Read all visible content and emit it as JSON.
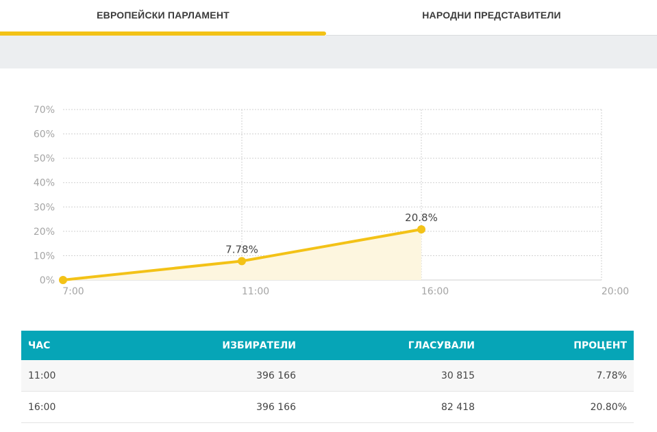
{
  "tabs": [
    {
      "label": "ЕВРОПЕЙСКИ ПАРЛАМЕНТ",
      "active": true
    },
    {
      "label": "НАРОДНИ ПРЕДСТАВИТЕЛИ",
      "active": false
    }
  ],
  "colors": {
    "accent": "#f3c217",
    "table_header": "#06a5b7",
    "area_fill": "#fdf6df"
  },
  "chart_data": {
    "type": "line",
    "title": "",
    "xlabel": "",
    "ylabel": "",
    "x_ticks": [
      "7:00",
      "11:00",
      "16:00",
      "20:00"
    ],
    "y_ticks": [
      "0%",
      "10%",
      "20%",
      "30%",
      "40%",
      "50%",
      "60%",
      "70%"
    ],
    "ylim": [
      0,
      70
    ],
    "grid": true,
    "legend": "none",
    "series": [
      {
        "x": [
          "7:00",
          "11:00",
          "16:00"
        ],
        "values": [
          0,
          7.78,
          20.8
        ],
        "labels": [
          "",
          "7.78%",
          "20.8%"
        ]
      }
    ]
  },
  "table": {
    "headers": [
      "ЧАС",
      "ИЗБИРАТЕЛИ",
      "ГЛАСУВАЛИ",
      "ПРОЦЕНТ"
    ],
    "rows": [
      [
        "11:00",
        "396 166",
        "30 815",
        "7.78%"
      ],
      [
        "16:00",
        "396 166",
        "82 418",
        "20.80%"
      ]
    ]
  }
}
